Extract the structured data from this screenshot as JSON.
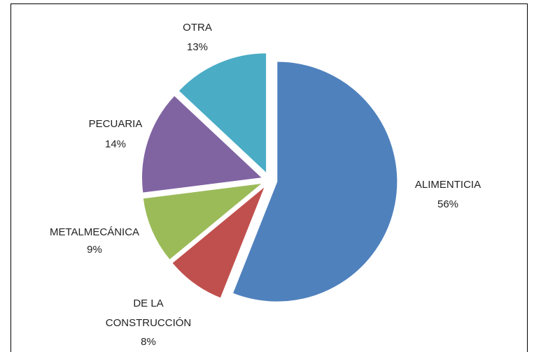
{
  "chart_data": {
    "type": "pie",
    "categories": [
      "ALIMENTICIA",
      "DE LA CONSTRUCCIÓN",
      "METALMECÁNICA",
      "PECUARIA",
      "OTRA"
    ],
    "values": [
      56,
      8,
      9,
      14,
      13
    ],
    "value_labels": [
      "56%",
      "8%",
      "9%",
      "14%",
      "13%"
    ],
    "colors": [
      "#4f81bd",
      "#c0504d",
      "#9bbb59",
      "#8064a2",
      "#4bacc6"
    ]
  }
}
